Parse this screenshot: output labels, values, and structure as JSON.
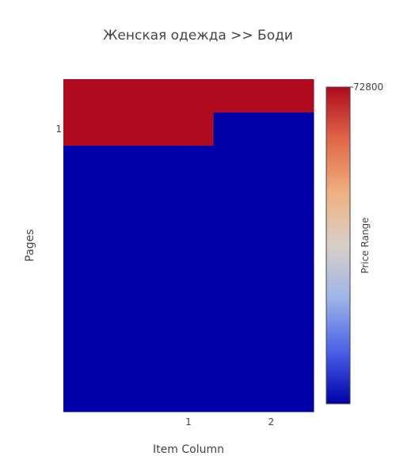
{
  "chart_data": {
    "type": "heatmap",
    "title": "Женская одежда >> Боди",
    "xlabel": "Item Column",
    "ylabel": "Pages",
    "x_tick_labels": [
      "1",
      "2"
    ],
    "y_tick_labels": [
      "1"
    ],
    "colorbar": {
      "title": "Price Range",
      "max_label": "72800",
      "colorscale": [
        "#0000a8",
        "#4a62e8",
        "#9fb4e8",
        "#d8d0c8",
        "#f0b080",
        "#e06848",
        "#b00a1e"
      ]
    },
    "rows": [
      [
        72800,
        72800,
        72800,
        72800,
        72800
      ],
      [
        72800,
        72800,
        72800,
        0,
        0
      ],
      [
        0,
        0,
        0,
        0,
        0
      ],
      [
        0,
        0,
        0,
        0,
        0
      ],
      [
        0,
        0,
        0,
        0,
        0
      ],
      [
        0,
        0,
        0,
        0,
        0
      ],
      [
        0,
        0,
        0,
        0,
        0
      ],
      [
        0,
        0,
        0,
        0,
        0
      ],
      [
        0,
        0,
        0,
        0,
        0
      ],
      [
        0,
        0,
        0,
        0,
        0
      ]
    ],
    "zmin": 0,
    "zmax": 72800
  }
}
